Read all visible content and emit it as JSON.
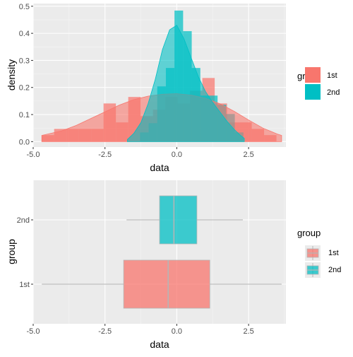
{
  "colors": {
    "first": "#F8766D",
    "second": "#00BFC4",
    "panel": "#EBEBEB",
    "grid_major": "#FFFFFF",
    "grid_minor": "#F5F5F5",
    "tick_text": "#4D4D4D"
  },
  "chart_data": [
    {
      "type": "histogram-density",
      "xlabel": "data",
      "ylabel": "density",
      "xlim": [
        -5.0,
        3.8
      ],
      "ylim": [
        -0.02,
        0.51
      ],
      "x_ticks": [
        -5.0,
        -2.5,
        0.0,
        2.5
      ],
      "x_tick_labels": [
        "-5.0",
        "-2.5",
        "0.0",
        "2.5"
      ],
      "y_ticks": [
        0.0,
        0.1,
        0.2,
        0.3,
        0.4,
        0.5
      ],
      "y_tick_labels": [
        "0.0",
        "0.1",
        "0.2",
        "0.3",
        "0.4",
        "0.5"
      ],
      "grid": true,
      "legend": {
        "title": "group",
        "position": "right",
        "entries": [
          "1st",
          "2nd"
        ]
      },
      "series": [
        {
          "name": "1st",
          "histogram": {
            "bin_edges": [
              -4.7,
              -4.27,
              -3.84,
              -3.41,
              -2.98,
              -2.55,
              -2.12,
              -1.69,
              -1.26,
              -0.83,
              -0.4,
              0.03,
              0.46,
              0.89,
              1.32,
              1.75,
              2.18,
              2.61,
              3.04,
              3.47
            ],
            "densities": [
              0.024,
              0.047,
              0.047,
              0.047,
              0.047,
              0.141,
              0.071,
              0.165,
              0.094,
              0.118,
              0.165,
              0.141,
              0.188,
              0.235,
              0.141,
              0.071,
              0.071,
              0.047,
              0.024
            ]
          },
          "density_curve": {
            "x": [
              -4.7,
              -4.0,
              -3.5,
              -3.0,
              -2.5,
              -2.0,
              -1.5,
              -1.0,
              -0.5,
              0.0,
              0.5,
              1.0,
              1.5,
              2.0,
              2.5,
              3.0,
              3.5,
              3.65
            ],
            "y": [
              0.023,
              0.04,
              0.06,
              0.085,
              0.11,
              0.135,
              0.155,
              0.168,
              0.175,
              0.177,
              0.172,
              0.16,
              0.14,
              0.112,
              0.08,
              0.05,
              0.028,
              0.023
            ]
          }
        },
        {
          "name": "2nd",
          "histogram": {
            "bin_edges": [
              -1.28,
              -0.98,
              -0.68,
              -0.38,
              -0.08,
              0.22,
              0.52,
              0.82,
              1.12,
              1.42,
              1.72,
              2.02,
              2.32
            ],
            "densities": [
              0.034,
              0.068,
              0.204,
              0.272,
              0.484,
              0.408,
              0.272,
              0.17,
              0.17,
              0.136,
              0.102,
              0.034
            ]
          },
          "density_curve": {
            "x": [
              -1.72,
              -1.5,
              -1.25,
              -1.0,
              -0.75,
              -0.5,
              -0.25,
              0.0,
              0.25,
              0.5,
              0.75,
              1.0,
              1.25,
              1.5,
              1.75,
              2.0,
              2.2,
              2.35
            ],
            "y": [
              0.008,
              0.03,
              0.07,
              0.14,
              0.23,
              0.34,
              0.413,
              0.43,
              0.38,
              0.31,
              0.24,
              0.185,
              0.145,
              0.11,
              0.075,
              0.045,
              0.025,
              0.012
            ]
          }
        }
      ]
    },
    {
      "type": "boxplot",
      "orientation": "horizontal",
      "xlabel": "data",
      "ylabel": "group",
      "xlim": [
        -5.0,
        3.8
      ],
      "x_ticks": [
        -5.0,
        -2.5,
        0.0,
        2.5
      ],
      "x_tick_labels": [
        "-5.0",
        "-2.5",
        "0.0",
        "2.5"
      ],
      "categories": [
        "1st",
        "2nd"
      ],
      "grid": true,
      "legend": {
        "title": "group",
        "position": "right",
        "entries": [
          "1st",
          "2nd"
        ]
      },
      "series": [
        {
          "name": "1st",
          "min": -4.7,
          "q1": -1.85,
          "median": -0.3,
          "q3": 1.15,
          "max": 3.65
        },
        {
          "name": "2nd",
          "min": -1.75,
          "q1": -0.6,
          "median": -0.1,
          "q3": 0.7,
          "max": 2.3
        }
      ]
    }
  ]
}
